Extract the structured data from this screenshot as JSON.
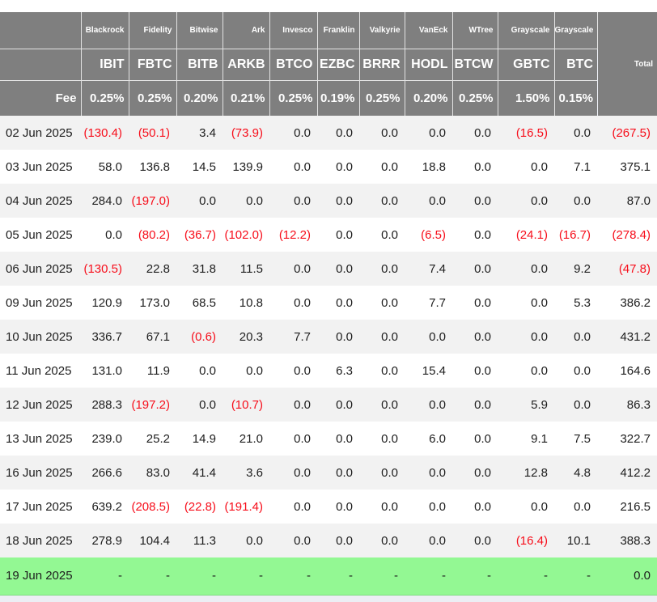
{
  "colors": {
    "header_bg": "#7f7f7f",
    "header_text": "#ffffff",
    "negative_text": "#f70d1a",
    "row_alt_bg": "#f2f2f2",
    "highlight_row_bg": "#93f893",
    "footer_strip_bg": "#eceef4"
  },
  "chart_data": {
    "type": "table",
    "fee_label": "Fee",
    "total_label": "Total",
    "columns": [
      {
        "issuer": "Blackrock",
        "ticker": "IBIT",
        "fee": "0.25%"
      },
      {
        "issuer": "Fidelity",
        "ticker": "FBTC",
        "fee": "0.25%"
      },
      {
        "issuer": "Bitwise",
        "ticker": "BITB",
        "fee": "0.20%"
      },
      {
        "issuer": "Ark",
        "ticker": "ARKB",
        "fee": "0.21%"
      },
      {
        "issuer": "Invesco",
        "ticker": "BTCO",
        "fee": "0.25%"
      },
      {
        "issuer": "Franklin",
        "ticker": "EZBC",
        "fee": "0.19%"
      },
      {
        "issuer": "Valkyrie",
        "ticker": "BRRR",
        "fee": "0.25%"
      },
      {
        "issuer": "VanEck",
        "ticker": "HODL",
        "fee": "0.20%"
      },
      {
        "issuer": "WTree",
        "ticker": "BTCW",
        "fee": "0.25%"
      },
      {
        "issuer": "Grayscale",
        "ticker": "GBTC",
        "fee": "1.50%"
      },
      {
        "issuer": "Grayscale",
        "ticker": "BTC",
        "fee": "0.15%"
      }
    ],
    "rows": [
      {
        "date": "02 Jun 2025",
        "values": [
          "(130.4)",
          "(50.1)",
          "3.4",
          "(73.9)",
          "0.0",
          "0.0",
          "0.0",
          "0.0",
          "0.0",
          "(16.5)",
          "0.0"
        ],
        "total": "(267.5)",
        "highlight": false
      },
      {
        "date": "03 Jun 2025",
        "values": [
          "58.0",
          "136.8",
          "14.5",
          "139.9",
          "0.0",
          "0.0",
          "0.0",
          "18.8",
          "0.0",
          "0.0",
          "7.1"
        ],
        "total": "375.1",
        "highlight": false
      },
      {
        "date": "04 Jun 2025",
        "values": [
          "284.0",
          "(197.0)",
          "0.0",
          "0.0",
          "0.0",
          "0.0",
          "0.0",
          "0.0",
          "0.0",
          "0.0",
          "0.0"
        ],
        "total": "87.0",
        "highlight": false
      },
      {
        "date": "05 Jun 2025",
        "values": [
          "0.0",
          "(80.2)",
          "(36.7)",
          "(102.0)",
          "(12.2)",
          "0.0",
          "0.0",
          "(6.5)",
          "0.0",
          "(24.1)",
          "(16.7)"
        ],
        "total": "(278.4)",
        "highlight": false
      },
      {
        "date": "06 Jun 2025",
        "values": [
          "(130.5)",
          "22.8",
          "31.8",
          "11.5",
          "0.0",
          "0.0",
          "0.0",
          "7.4",
          "0.0",
          "0.0",
          "9.2"
        ],
        "total": "(47.8)",
        "highlight": false
      },
      {
        "date": "09 Jun 2025",
        "values": [
          "120.9",
          "173.0",
          "68.5",
          "10.8",
          "0.0",
          "0.0",
          "0.0",
          "7.7",
          "0.0",
          "0.0",
          "5.3"
        ],
        "total": "386.2",
        "highlight": false
      },
      {
        "date": "10 Jun 2025",
        "values": [
          "336.7",
          "67.1",
          "(0.6)",
          "20.3",
          "7.7",
          "0.0",
          "0.0",
          "0.0",
          "0.0",
          "0.0",
          "0.0"
        ],
        "total": "431.2",
        "highlight": false
      },
      {
        "date": "11 Jun 2025",
        "values": [
          "131.0",
          "11.9",
          "0.0",
          "0.0",
          "0.0",
          "6.3",
          "0.0",
          "15.4",
          "0.0",
          "0.0",
          "0.0"
        ],
        "total": "164.6",
        "highlight": false
      },
      {
        "date": "12 Jun 2025",
        "values": [
          "288.3",
          "(197.2)",
          "0.0",
          "(10.7)",
          "0.0",
          "0.0",
          "0.0",
          "0.0",
          "0.0",
          "5.9",
          "0.0"
        ],
        "total": "86.3",
        "highlight": false
      },
      {
        "date": "13 Jun 2025",
        "values": [
          "239.0",
          "25.2",
          "14.9",
          "21.0",
          "0.0",
          "0.0",
          "0.0",
          "6.0",
          "0.0",
          "9.1",
          "7.5"
        ],
        "total": "322.7",
        "highlight": false
      },
      {
        "date": "16 Jun 2025",
        "values": [
          "266.6",
          "83.0",
          "41.4",
          "3.6",
          "0.0",
          "0.0",
          "0.0",
          "0.0",
          "0.0",
          "12.8",
          "4.8"
        ],
        "total": "412.2",
        "highlight": false
      },
      {
        "date": "17 Jun 2025",
        "values": [
          "639.2",
          "(208.5)",
          "(22.8)",
          "(191.4)",
          "0.0",
          "0.0",
          "0.0",
          "0.0",
          "0.0",
          "0.0",
          "0.0"
        ],
        "total": "216.5",
        "highlight": false
      },
      {
        "date": "18 Jun 2025",
        "values": [
          "278.9",
          "104.4",
          "11.3",
          "0.0",
          "0.0",
          "0.0",
          "0.0",
          "0.0",
          "0.0",
          "(16.4)",
          "10.1"
        ],
        "total": "388.3",
        "highlight": false
      },
      {
        "date": "19 Jun 2025",
        "values": [
          "-",
          "-",
          "-",
          "-",
          "-",
          "-",
          "-",
          "-",
          "-",
          "-",
          "-"
        ],
        "total": "0.0",
        "highlight": true
      }
    ]
  }
}
